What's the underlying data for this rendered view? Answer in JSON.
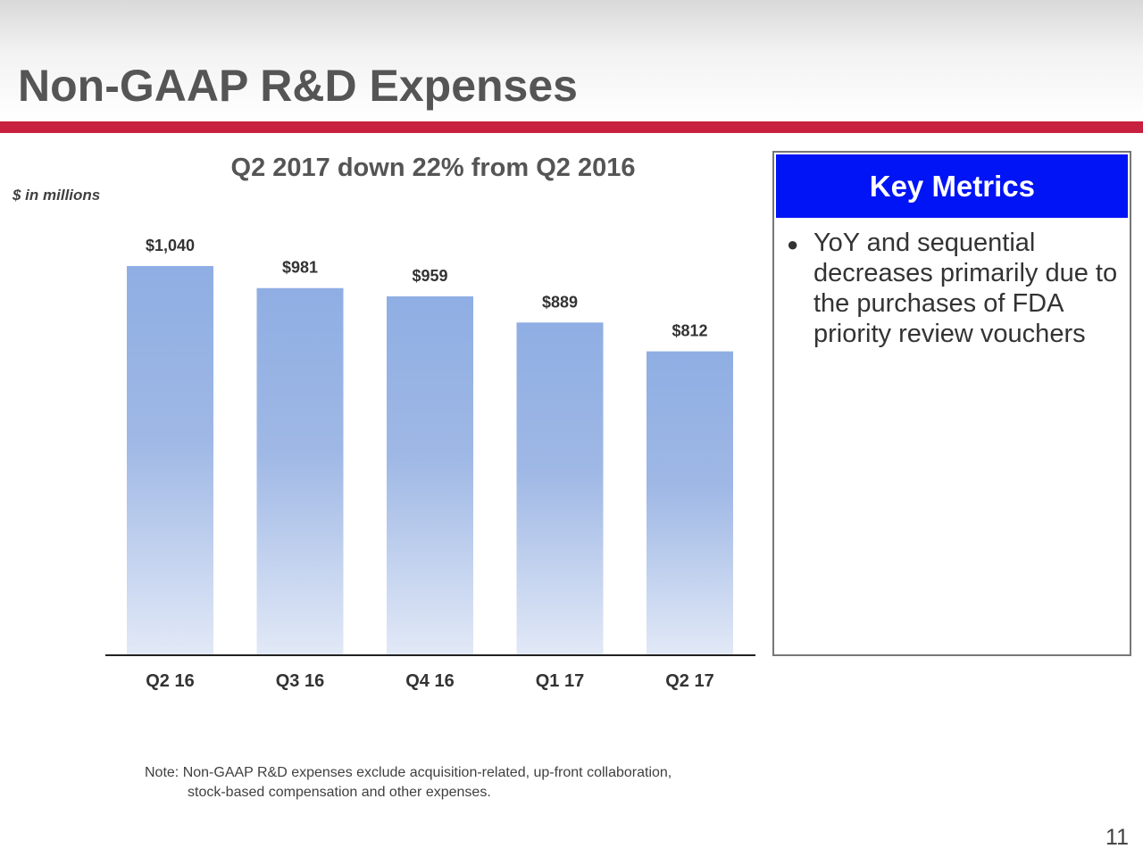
{
  "title": "Non-GAAP R&D Expenses",
  "key_metrics": {
    "heading": "Key Metrics",
    "bullet": "YoY and sequential decreases primarily due to the purchases of FDA priority review vouchers"
  },
  "note": {
    "line1": "Note: Non-GAAP R&D expenses exclude acquisition-related, up-front collaboration,",
    "line2": "stock-based compensation and other expenses."
  },
  "page_number": "11",
  "chart_data": {
    "type": "bar",
    "title": "Q2 2017 down 22% from Q2 2016",
    "units_label": "$ in millions",
    "categories": [
      "Q2 16",
      "Q3 16",
      "Q4 16",
      "Q1 17",
      "Q2 17"
    ],
    "values": [
      1040,
      981,
      959,
      889,
      812
    ],
    "value_labels": [
      "$1,040",
      "$981",
      "$959",
      "$889",
      "$812"
    ],
    "ylim": [
      0,
      1040
    ],
    "grid": false,
    "bar_color": "#8faee3"
  }
}
